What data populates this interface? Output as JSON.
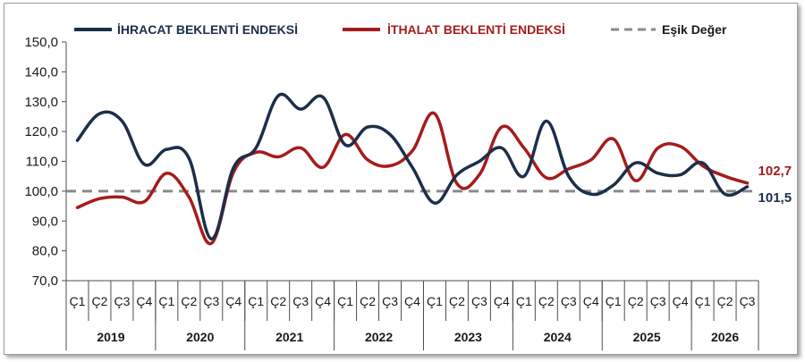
{
  "chart_data": {
    "type": "line",
    "ylim": [
      70,
      150
    ],
    "yticks": [
      "150,0",
      "140,0",
      "130,0",
      "120,0",
      "110,0",
      "100,0",
      "90,0",
      "80,0",
      "70,0"
    ],
    "ytick_values": [
      150,
      140,
      130,
      120,
      110,
      100,
      90,
      80,
      70
    ],
    "quarters": [
      "Ç1",
      "Ç2",
      "Ç3",
      "Ç4",
      "Ç1",
      "Ç2",
      "Ç3",
      "Ç4",
      "Ç1",
      "Ç2",
      "Ç3",
      "Ç4",
      "Ç1",
      "Ç2",
      "Ç3",
      "Ç4",
      "Ç1",
      "Ç2",
      "Ç3",
      "Ç4",
      "Ç1",
      "Ç2",
      "Ç3",
      "Ç4",
      "Ç1",
      "Ç2",
      "Ç3",
      "Ç4",
      "Ç1",
      "Ç2",
      "Ç3"
    ],
    "years": [
      {
        "label": "2019",
        "quarters": 4
      },
      {
        "label": "2020",
        "quarters": 4
      },
      {
        "label": "2021",
        "quarters": 4
      },
      {
        "label": "2022",
        "quarters": 4
      },
      {
        "label": "2023",
        "quarters": 4
      },
      {
        "label": "2024",
        "quarters": 4
      },
      {
        "label": "2025",
        "quarters": 4
      },
      {
        "label": "2026",
        "quarters": 3
      }
    ],
    "series": [
      {
        "name": "İHRACAT BEKLENTİ ENDEKSİ",
        "color": "#1c2e4a",
        "values": [
          117.0,
          126.0,
          123.5,
          109.0,
          114.0,
          111.0,
          84.0,
          108.0,
          114.5,
          132.0,
          127.5,
          131.5,
          115.5,
          121.5,
          119.0,
          108.0,
          96.0,
          105.5,
          110.0,
          114.5,
          105.0,
          123.5,
          105.0,
          99.0,
          102.0,
          109.5,
          106.0,
          105.5,
          109.5,
          99.0,
          101.5
        ]
      },
      {
        "name": "İTHALAT BEKLENTİ ENDEKSİ",
        "color": "#a51c1c",
        "values": [
          94.5,
          97.5,
          98.0,
          96.5,
          106.0,
          98.0,
          82.5,
          106.5,
          113.0,
          111.5,
          114.5,
          108.0,
          119.0,
          110.5,
          108.5,
          113.5,
          126.0,
          102.5,
          105.5,
          121.5,
          114.5,
          104.5,
          107.5,
          110.5,
          117.5,
          103.5,
          114.5,
          115.0,
          108.5,
          105.0,
          102.7
        ]
      }
    ],
    "threshold": {
      "name": "Eşik Değer",
      "value": 100,
      "color": "#8a8a8a"
    },
    "end_labels": [
      {
        "series": 1,
        "text": "102,7"
      },
      {
        "series": 0,
        "text": "101,5"
      }
    ],
    "legend_position": "top"
  }
}
